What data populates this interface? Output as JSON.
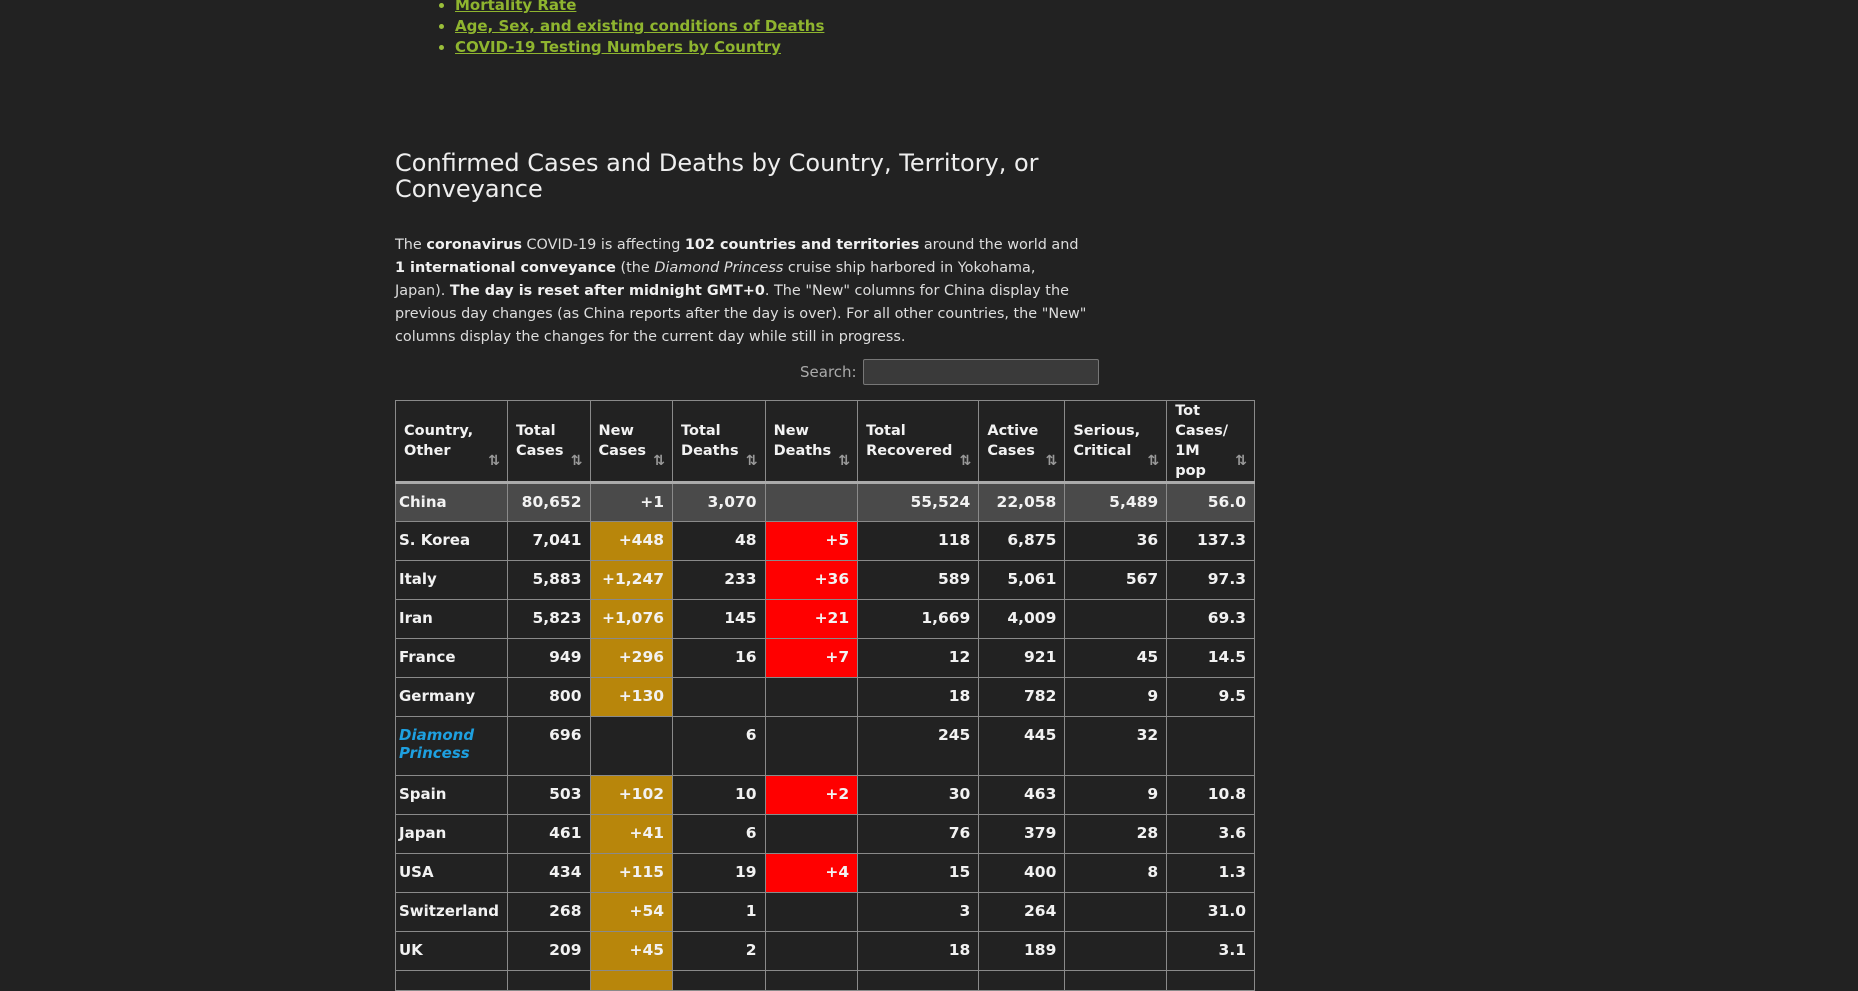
{
  "toc": {
    "items": [
      "Mortality Rate",
      "Age, Sex, and existing conditions of Deaths",
      "COVID-19 Testing Numbers by Country"
    ]
  },
  "section": {
    "title": "Confirmed Cases and Deaths by Country, Territory, or Conveyance"
  },
  "intro": {
    "p1": "The ",
    "coronavirus": "coronavirus",
    "p2": " COVID-19 is affecting ",
    "countries": "102 countries and territories",
    "p3": " around the world and ",
    "conveyance": "1 international conveyance",
    "p4": " (the ",
    "ship": "Diamond Princess",
    "p5": " cruise ship harbored in Yokohama, Japan). ",
    "reset": "The day is reset after midnight GMT+0",
    "p6": ". The \"New\" columns for China display the previous day changes (as China reports after the day is over). For all other countries, the \"New\" columns display the changes for the current day while still in progress."
  },
  "search": {
    "label": "Search:",
    "value": ""
  },
  "table": {
    "headers": [
      {
        "l1": "Country,",
        "l2": "Other"
      },
      {
        "l1": "Total",
        "l2": "Cases"
      },
      {
        "l1": "New",
        "l2": "Cases"
      },
      {
        "l1": "Total",
        "l2": "Deaths"
      },
      {
        "l1": "New",
        "l2": "Deaths"
      },
      {
        "l1": "Total",
        "l2": "Recovered"
      },
      {
        "l1": "Active",
        "l2": "Cases"
      },
      {
        "l1": "Serious,",
        "l2": "Critical"
      },
      {
        "l1": "Tot Cases/",
        "l2": "1M pop"
      }
    ],
    "rows": [
      {
        "country": "China",
        "total_cases": "80,652",
        "new_cases": "+1",
        "total_deaths": "3,070",
        "new_deaths": "",
        "recovered": "55,524",
        "active": "22,058",
        "serious": "5,489",
        "per_million": "56.0"
      },
      {
        "country": "S. Korea",
        "total_cases": "7,041",
        "new_cases": "+448",
        "total_deaths": "48",
        "new_deaths": "+5",
        "recovered": "118",
        "active": "6,875",
        "serious": "36",
        "per_million": "137.3"
      },
      {
        "country": "Italy",
        "total_cases": "5,883",
        "new_cases": "+1,247",
        "total_deaths": "233",
        "new_deaths": "+36",
        "recovered": "589",
        "active": "5,061",
        "serious": "567",
        "per_million": "97.3"
      },
      {
        "country": "Iran",
        "total_cases": "5,823",
        "new_cases": "+1,076",
        "total_deaths": "145",
        "new_deaths": "+21",
        "recovered": "1,669",
        "active": "4,009",
        "serious": "",
        "per_million": "69.3"
      },
      {
        "country": "France",
        "total_cases": "949",
        "new_cases": "+296",
        "total_deaths": "16",
        "new_deaths": "+7",
        "recovered": "12",
        "active": "921",
        "serious": "45",
        "per_million": "14.5"
      },
      {
        "country": "Germany",
        "total_cases": "800",
        "new_cases": "+130",
        "total_deaths": "",
        "new_deaths": "",
        "recovered": "18",
        "active": "782",
        "serious": "9",
        "per_million": "9.5"
      },
      {
        "country": "Diamond Princess",
        "total_cases": "696",
        "new_cases": "",
        "total_deaths": "6",
        "new_deaths": "",
        "recovered": "245",
        "active": "445",
        "serious": "32",
        "per_million": ""
      },
      {
        "country": "Spain",
        "total_cases": "503",
        "new_cases": "+102",
        "total_deaths": "10",
        "new_deaths": "+2",
        "recovered": "30",
        "active": "463",
        "serious": "9",
        "per_million": "10.8"
      },
      {
        "country": "Japan",
        "total_cases": "461",
        "new_cases": "+41",
        "total_deaths": "6",
        "new_deaths": "",
        "recovered": "76",
        "active": "379",
        "serious": "28",
        "per_million": "3.6"
      },
      {
        "country": "USA",
        "total_cases": "434",
        "new_cases": "+115",
        "total_deaths": "19",
        "new_deaths": "+4",
        "recovered": "15",
        "active": "400",
        "serious": "8",
        "per_million": "1.3"
      },
      {
        "country": "Switzerland",
        "total_cases": "268",
        "new_cases": "+54",
        "total_deaths": "1",
        "new_deaths": "",
        "recovered": "3",
        "active": "264",
        "serious": "",
        "per_million": "31.0"
      },
      {
        "country": "UK",
        "total_cases": "209",
        "new_cases": "+45",
        "total_deaths": "2",
        "new_deaths": "",
        "recovered": "18",
        "active": "189",
        "serious": "",
        "per_million": "3.1"
      }
    ]
  },
  "colors": {
    "background": "#222222",
    "link": "#8fb52f",
    "new_cases_highlight": "#b8860b",
    "new_deaths_highlight": "#ff0000",
    "conveyance_link": "#1ea0e0",
    "total_row": "#4a4a4a"
  }
}
